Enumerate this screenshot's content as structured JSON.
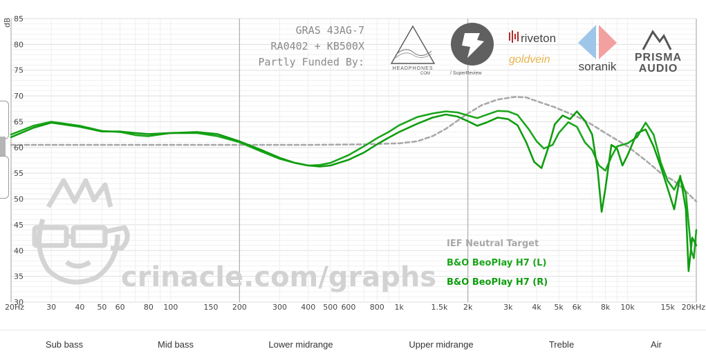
{
  "rig": {
    "line1": "GRAS 43AG-7",
    "line2": "RA0402 + KB500X",
    "line3": "Partly Funded By:"
  },
  "sponsors": {
    "headphones_com": "HEADPHONES\nCOM",
    "superreview": "/ SuperReview",
    "riveton": "riveton",
    "goldvein": "goldvein",
    "soranik": "soranik",
    "prisma_1": "PRISMA",
    "prisma_2": "AUDIO"
  },
  "watermark": "crinacle.com/graphs",
  "bands": [
    "Sub bass",
    "Mid bass",
    "Lower midrange",
    "Upper midrange",
    "Treble",
    "Air"
  ],
  "colors": {
    "target": "#a8a8a8",
    "left": "#1aa51a",
    "right": "#0f9c0f",
    "grid": "#e6e6e6",
    "grid_major": "#a0a0a0"
  },
  "chart_data": {
    "type": "line",
    "ylabel": "dB",
    "ylim": [
      30,
      85
    ],
    "xlim": [
      20,
      20000
    ],
    "xscale": "log",
    "grid": true,
    "legend_placement": "bottom-right",
    "y_ticks": [
      85,
      80,
      75,
      70,
      65,
      60,
      55,
      50,
      45,
      40,
      35,
      30
    ],
    "x_ticks": [
      {
        "label": "20Hz",
        "value": 20
      },
      {
        "label": "30",
        "value": 30
      },
      {
        "label": "40",
        "value": 40
      },
      {
        "label": "50",
        "value": 50
      },
      {
        "label": "60",
        "value": 60
      },
      {
        "label": "80",
        "value": 80
      },
      {
        "label": "100",
        "value": 100
      },
      {
        "label": "150",
        "value": 150
      },
      {
        "label": "200",
        "value": 200
      },
      {
        "label": "300",
        "value": 300
      },
      {
        "label": "400",
        "value": 400
      },
      {
        "label": "500",
        "value": 500
      },
      {
        "label": "600",
        "value": 600
      },
      {
        "label": "800",
        "value": 800
      },
      {
        "label": "1k",
        "value": 1000
      },
      {
        "label": "1.5k",
        "value": 1500
      },
      {
        "label": "2k",
        "value": 2000
      },
      {
        "label": "3k",
        "value": 3000
      },
      {
        "label": "4k",
        "value": 4000
      },
      {
        "label": "5k",
        "value": 5000
      },
      {
        "label": "6k",
        "value": 6000
      },
      {
        "label": "8k",
        "value": 8000
      },
      {
        "label": "10k",
        "value": 10000
      },
      {
        "label": "15k",
        "value": 15000
      },
      {
        "label": "20kHz",
        "value": 20000
      }
    ],
    "series": [
      {
        "name": "IEF Neutral Target",
        "style": "dashed",
        "points": [
          [
            20,
            60.5
          ],
          [
            100,
            60.5
          ],
          [
            200,
            60.5
          ],
          [
            400,
            60.5
          ],
          [
            700,
            60.6
          ],
          [
            1000,
            60.8
          ],
          [
            1200,
            61.2
          ],
          [
            1400,
            62.2
          ],
          [
            1600,
            63.6
          ],
          [
            1800,
            65.2
          ],
          [
            2000,
            66.6
          ],
          [
            2300,
            68.2
          ],
          [
            2700,
            69.3
          ],
          [
            3200,
            69.8
          ],
          [
            3600,
            69.7
          ],
          [
            4000,
            69.0
          ],
          [
            4800,
            67.8
          ],
          [
            6000,
            66.0
          ],
          [
            7000,
            64.4
          ],
          [
            8000,
            62.8
          ],
          [
            10000,
            60.2
          ],
          [
            12000,
            57.5
          ],
          [
            14000,
            55.0
          ],
          [
            16000,
            53.5
          ],
          [
            18000,
            51.5
          ],
          [
            20000,
            49.5
          ]
        ]
      },
      {
        "name": "B&O BeoPlay H7 (L)",
        "points": [
          [
            20,
            62.5
          ],
          [
            25,
            64.2
          ],
          [
            30,
            65.0
          ],
          [
            40,
            64.2
          ],
          [
            50,
            63.2
          ],
          [
            60,
            63.0
          ],
          [
            70,
            62.4
          ],
          [
            80,
            62.2
          ],
          [
            100,
            62.8
          ],
          [
            130,
            62.8
          ],
          [
            160,
            62.2
          ],
          [
            200,
            61.0
          ],
          [
            250,
            59.2
          ],
          [
            300,
            57.8
          ],
          [
            350,
            57.0
          ],
          [
            400,
            56.5
          ],
          [
            450,
            56.6
          ],
          [
            500,
            57.0
          ],
          [
            600,
            58.5
          ],
          [
            700,
            60.2
          ],
          [
            800,
            61.8
          ],
          [
            900,
            63.0
          ],
          [
            1000,
            64.3
          ],
          [
            1200,
            65.9
          ],
          [
            1400,
            66.6
          ],
          [
            1600,
            67.0
          ],
          [
            1800,
            66.8
          ],
          [
            2000,
            66.2
          ],
          [
            2200,
            65.7
          ],
          [
            2400,
            66.3
          ],
          [
            2700,
            67.1
          ],
          [
            3000,
            67.0
          ],
          [
            3300,
            66.3
          ],
          [
            3700,
            63.5
          ],
          [
            4000,
            61.2
          ],
          [
            4300,
            59.8
          ],
          [
            4700,
            60.5
          ],
          [
            5000,
            62.8
          ],
          [
            5500,
            64.9
          ],
          [
            6000,
            64.0
          ],
          [
            6500,
            61.0
          ],
          [
            7000,
            59.5
          ],
          [
            7500,
            56.5
          ],
          [
            8000,
            55.5
          ],
          [
            8500,
            58.2
          ],
          [
            9000,
            60.2
          ],
          [
            10000,
            60.8
          ],
          [
            11000,
            62.0
          ],
          [
            12000,
            64.8
          ],
          [
            13000,
            62.5
          ],
          [
            14000,
            57.0
          ],
          [
            15000,
            53.5
          ],
          [
            16000,
            51.8
          ],
          [
            17000,
            54.2
          ],
          [
            18000,
            51.0
          ],
          [
            19000,
            40.0
          ],
          [
            19500,
            38.5
          ],
          [
            20000,
            44.0
          ]
        ]
      },
      {
        "name": "B&O BeoPlay H7 (R)",
        "points": [
          [
            20,
            62.0
          ],
          [
            25,
            63.8
          ],
          [
            30,
            64.8
          ],
          [
            40,
            64.0
          ],
          [
            50,
            63.1
          ],
          [
            60,
            63.1
          ],
          [
            70,
            62.8
          ],
          [
            80,
            62.6
          ],
          [
            100,
            62.8
          ],
          [
            130,
            63.0
          ],
          [
            160,
            62.6
          ],
          [
            200,
            61.2
          ],
          [
            250,
            59.5
          ],
          [
            300,
            58.0
          ],
          [
            350,
            57.0
          ],
          [
            400,
            56.5
          ],
          [
            450,
            56.3
          ],
          [
            500,
            56.5
          ],
          [
            600,
            57.6
          ],
          [
            700,
            59.0
          ],
          [
            800,
            60.6
          ],
          [
            900,
            61.9
          ],
          [
            1000,
            63.0
          ],
          [
            1200,
            64.6
          ],
          [
            1400,
            65.8
          ],
          [
            1600,
            66.4
          ],
          [
            1800,
            66.0
          ],
          [
            2000,
            65.1
          ],
          [
            2200,
            64.2
          ],
          [
            2400,
            64.8
          ],
          [
            2700,
            65.8
          ],
          [
            3000,
            65.5
          ],
          [
            3300,
            64.3
          ],
          [
            3600,
            61.0
          ],
          [
            3900,
            57.2
          ],
          [
            4200,
            56.0
          ],
          [
            4500,
            60.0
          ],
          [
            4800,
            64.5
          ],
          [
            5200,
            66.2
          ],
          [
            5600,
            65.5
          ],
          [
            6000,
            67.0
          ],
          [
            6500,
            65.2
          ],
          [
            7000,
            62.5
          ],
          [
            7400,
            55.5
          ],
          [
            7700,
            47.5
          ],
          [
            8000,
            52.0
          ],
          [
            8500,
            60.5
          ],
          [
            9000,
            59.8
          ],
          [
            9500,
            56.5
          ],
          [
            10000,
            58.5
          ],
          [
            11000,
            62.8
          ],
          [
            12000,
            63.5
          ],
          [
            13000,
            60.2
          ],
          [
            14000,
            56.2
          ],
          [
            15000,
            52.0
          ],
          [
            16000,
            48.0
          ],
          [
            17000,
            54.5
          ],
          [
            18000,
            48.0
          ],
          [
            18500,
            36.0
          ],
          [
            19200,
            42.5
          ],
          [
            20000,
            41.0
          ]
        ]
      }
    ]
  }
}
